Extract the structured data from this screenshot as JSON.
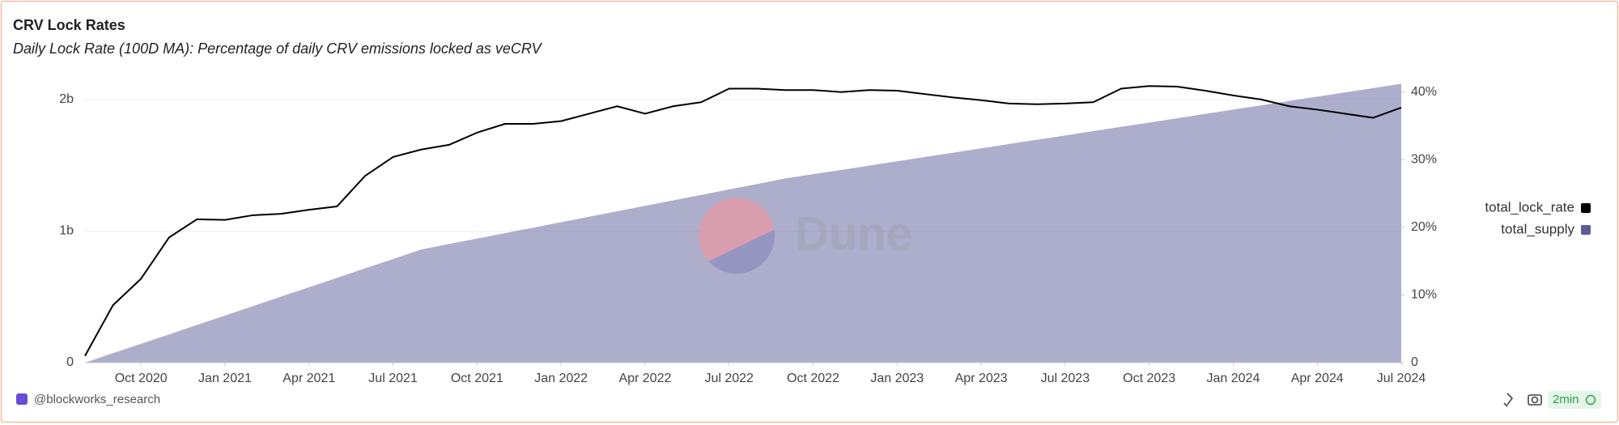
{
  "chart_data": {
    "type": "line-area",
    "title": "CRV Lock Rates",
    "subtitle": "Daily Lock Rate (100D MA): Percentage of daily CRV emissions locked as veCRV",
    "watermark": "Dune",
    "footer": {
      "author": "@blockworks_research",
      "refresh": "2min"
    },
    "x": [
      "2020-08",
      "2020-09",
      "2020-10",
      "2020-11",
      "2020-12",
      "2021-01",
      "2021-02",
      "2021-03",
      "2021-04",
      "2021-05",
      "2021-06",
      "2021-07",
      "2021-08",
      "2021-09",
      "2021-10",
      "2021-11",
      "2021-12",
      "2022-01",
      "2022-02",
      "2022-03",
      "2022-04",
      "2022-05",
      "2022-06",
      "2022-07",
      "2022-08",
      "2022-09",
      "2022-10",
      "2022-11",
      "2022-12",
      "2023-01",
      "2023-02",
      "2023-03",
      "2023-04",
      "2023-05",
      "2023-06",
      "2023-07",
      "2023-08",
      "2023-09",
      "2023-10",
      "2023-11",
      "2023-12",
      "2024-01",
      "2024-02",
      "2024-03",
      "2024-04",
      "2024-05",
      "2024-06",
      "2024-07"
    ],
    "xlim": [
      "2020-08",
      "2024-07"
    ],
    "xticks": [
      {
        "value": "2020-10",
        "label": "Oct 2020"
      },
      {
        "value": "2021-01",
        "label": "Jan 2021"
      },
      {
        "value": "2021-04",
        "label": "Apr 2021"
      },
      {
        "value": "2021-07",
        "label": "Jul 2021"
      },
      {
        "value": "2021-10",
        "label": "Oct 2021"
      },
      {
        "value": "2022-01",
        "label": "Jan 2022"
      },
      {
        "value": "2022-04",
        "label": "Apr 2022"
      },
      {
        "value": "2022-07",
        "label": "Jul 2022"
      },
      {
        "value": "2022-10",
        "label": "Oct 2022"
      },
      {
        "value": "2023-01",
        "label": "Jan 2023"
      },
      {
        "value": "2023-04",
        "label": "Apr 2023"
      },
      {
        "value": "2023-07",
        "label": "Jul 2023"
      },
      {
        "value": "2023-10",
        "label": "Oct 2023"
      },
      {
        "value": "2024-01",
        "label": "Jan 2024"
      },
      {
        "value": "2024-04",
        "label": "Apr 2024"
      },
      {
        "value": "2024-07",
        "label": "Jul 2024"
      }
    ],
    "ylim": [
      0,
      2160000000
    ],
    "yticks": [
      0,
      {
        "value": 1000000000,
        "label": "1b"
      },
      {
        "value": 2000000000,
        "label": "2b"
      }
    ],
    "y2lim": [
      0,
      42
    ],
    "y2ticks": [
      0,
      {
        "value": 10,
        "label": "10%"
      },
      {
        "value": 20,
        "label": "20%"
      },
      {
        "value": 30,
        "label": "30%"
      },
      {
        "value": 40,
        "label": "40%"
      }
    ],
    "grid": true,
    "legend": "right",
    "series": [
      {
        "name": "total_lock_rate",
        "color": "#000000",
        "axis": "y2",
        "type": "line",
        "values": [
          1,
          8.5,
          12.4,
          18.5,
          21.2,
          21.1,
          21.8,
          22.0,
          22.6,
          23.1,
          27.6,
          30.4,
          31.5,
          32.2,
          34.0,
          35.3,
          35.3,
          35.7,
          36.8,
          37.9,
          36.8,
          37.9,
          38.5,
          40.5,
          40.5,
          40.3,
          40.3,
          40.0,
          40.3,
          40.2,
          39.7,
          39.2,
          38.8,
          38.3,
          38.2,
          38.3,
          38.5,
          40.5,
          40.9,
          40.8,
          40.2,
          39.5,
          38.9,
          37.9,
          37.4,
          36.8,
          36.2,
          37.7
        ]
      },
      {
        "name": "total_supply",
        "color": "#5b5b9a",
        "type": "area",
        "values": [
          0,
          72000000,
          143000000,
          215000000,
          287000000,
          358000000,
          430000000,
          502000000,
          573000000,
          645000000,
          717000000,
          788000000,
          860000000,
          902000000,
          943000000,
          985000000,
          1026000000,
          1068000000,
          1109000000,
          1151000000,
          1192000000,
          1234000000,
          1275000000,
          1317000000,
          1358000000,
          1400000000,
          1433000000,
          1465000000,
          1498000000,
          1531000000,
          1564000000,
          1596000000,
          1629000000,
          1662000000,
          1695000000,
          1727000000,
          1760000000,
          1793000000,
          1825000000,
          1858000000,
          1891000000,
          1924000000,
          1956000000,
          1989000000,
          2022000000,
          2055000000,
          2087000000,
          2120000000
        ]
      }
    ]
  }
}
